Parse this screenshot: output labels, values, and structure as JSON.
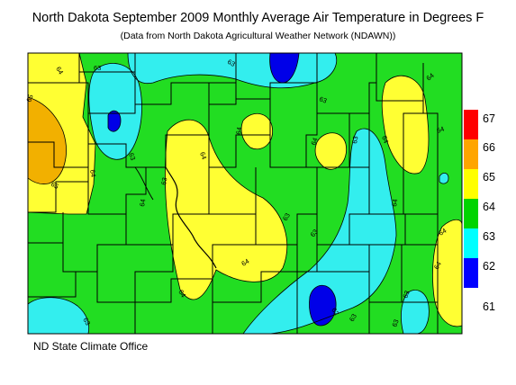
{
  "title": "North Dakota September 2009 Monthly Average Air Temperature in Degrees F",
  "subtitle": "(Data from North Dakota Agricultural Weather Network (NDAWN))",
  "credit": "ND State Climate Office",
  "legend": [
    {
      "label": "67",
      "color": "#ff0000"
    },
    {
      "label": "66",
      "color": "#ffa500"
    },
    {
      "label": "65",
      "color": "#ffff00"
    },
    {
      "label": "64",
      "color": "#00d400"
    },
    {
      "label": "63",
      "color": "#00ffff"
    },
    {
      "label": "62",
      "color": "#0000ff"
    },
    {
      "label": "61",
      "color": ""
    }
  ],
  "map_colors": {
    "c61": "#0000e8",
    "c62": "#33eeee",
    "c63": "#22dd22",
    "c64": "#ffff33",
    "c65": "#f2b000",
    "border": "#000000"
  },
  "contour_labels": {
    "l1": "64",
    "l2": "65",
    "l3": "63",
    "l4": "63",
    "l5": "63",
    "l6": "64",
    "l7": "63",
    "l8": "64",
    "l9": "63",
    "l10": "64",
    "l11": "64",
    "l12": "64",
    "l13": "65",
    "l14": "64",
    "l15": "64",
    "l16": "64",
    "l17": "63",
    "l18": "63",
    "l19": "63",
    "l20": "64",
    "l21": "64",
    "l22": "63",
    "l23": "64",
    "l24": "62",
    "l25": "63",
    "l26": "63",
    "l27": "63",
    "l28": "64",
    "l29": "64"
  }
}
